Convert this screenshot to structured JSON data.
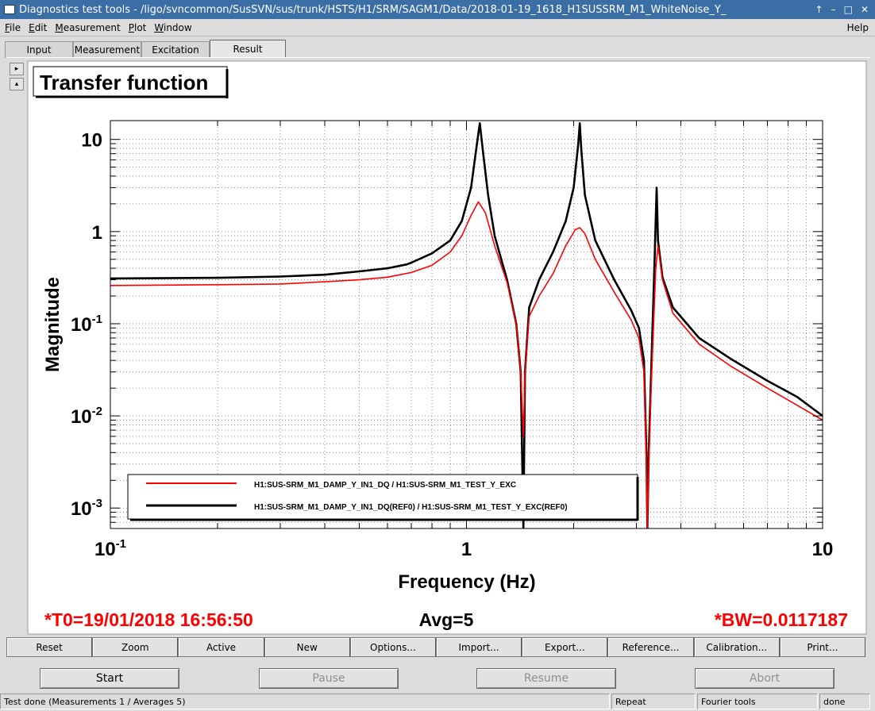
{
  "window": {
    "title": "Diagnostics test tools - /ligo/svncommon/SusSVN/sus/trunk/HSTS/H1/SRM/SAGM1/Data/2018-01-19_1618_H1SUSSRM_M1_WhiteNoise_Y_",
    "buttons": [
      "↑",
      "–",
      "□",
      "✕"
    ]
  },
  "menu": {
    "items": [
      "File",
      "Edit",
      "Measurement",
      "Plot",
      "Window"
    ],
    "help": "Help"
  },
  "tabs": [
    "Input",
    "Measurement",
    "Excitation",
    "Result"
  ],
  "side_buttons": [
    "▸",
    "▴"
  ],
  "plot": {
    "title": "Transfer function",
    "t0": "*T0=19/01/2018 16:56:50",
    "avg": "Avg=5",
    "bw": "*BW=0.0117187",
    "annotation_color": "#ff0000"
  },
  "chart_data": {
    "type": "line",
    "title": "Transfer function",
    "xlabel": "Frequency (Hz)",
    "ylabel": "Magnitude",
    "x_scale": "log",
    "y_scale": "log",
    "xlim": [
      0.1,
      10
    ],
    "ylim": [
      0.0006,
      16
    ],
    "x_ticks": [
      {
        "value": 0.1,
        "label": "10",
        "exp": "-1"
      },
      {
        "value": 1,
        "label": "1",
        "exp": ""
      },
      {
        "value": 10,
        "label": "10",
        "exp": ""
      }
    ],
    "y_ticks": [
      {
        "value": 10,
        "label": "10",
        "exp": ""
      },
      {
        "value": 1,
        "label": "1",
        "exp": ""
      },
      {
        "value": 0.1,
        "label": "10",
        "exp": "-1"
      },
      {
        "value": 0.01,
        "label": "10",
        "exp": "-2"
      },
      {
        "value": 0.001,
        "label": "10",
        "exp": "-3"
      }
    ],
    "grid": true,
    "legend_position": "bottom-left",
    "series": [
      {
        "name": "H1:SUS-SRM_M1_DAMP_Y_IN1_DQ / H1:SUS-SRM_M1_TEST_Y_EXC",
        "color": "#ff0000",
        "x": [
          0.1,
          0.2,
          0.3,
          0.4,
          0.5,
          0.6,
          0.7,
          0.8,
          0.9,
          0.97,
          1.03,
          1.08,
          1.13,
          1.2,
          1.3,
          1.38,
          1.42,
          1.445,
          1.46,
          1.5,
          1.6,
          1.75,
          1.9,
          2.02,
          2.08,
          2.15,
          2.3,
          2.6,
          2.9,
          3.05,
          3.15,
          3.2,
          3.22,
          3.25,
          3.3,
          3.4,
          3.45,
          3.55,
          3.8,
          4.5,
          5.5,
          7,
          8.5,
          10
        ],
        "y": [
          0.26,
          0.265,
          0.27,
          0.285,
          0.3,
          0.32,
          0.36,
          0.43,
          0.6,
          0.9,
          1.5,
          2.1,
          1.6,
          0.7,
          0.28,
          0.1,
          0.03,
          0.006,
          0.03,
          0.12,
          0.2,
          0.35,
          0.7,
          1.05,
          1.1,
          0.95,
          0.5,
          0.22,
          0.11,
          0.07,
          0.03,
          0.003,
          0.0006,
          0.003,
          0.02,
          0.4,
          0.7,
          0.3,
          0.13,
          0.06,
          0.035,
          0.02,
          0.013,
          0.009
        ]
      },
      {
        "name": "H1:SUS-SRM_M1_DAMP_Y_IN1_DQ(REF0) / H1:SUS-SRM_M1_TEST_Y_EXC(REF0)",
        "color": "#000000",
        "x": [
          0.1,
          0.2,
          0.3,
          0.4,
          0.5,
          0.6,
          0.68,
          0.7,
          0.8,
          0.9,
          0.97,
          1.03,
          1.07,
          1.09,
          1.11,
          1.15,
          1.2,
          1.3,
          1.38,
          1.42,
          1.445,
          1.46,
          1.5,
          1.6,
          1.75,
          1.9,
          2.0,
          2.06,
          2.08,
          2.1,
          2.15,
          2.3,
          2.6,
          2.9,
          3.05,
          3.15,
          3.2,
          3.22,
          3.25,
          3.3,
          3.38,
          3.42,
          3.45,
          3.55,
          3.8,
          4.5,
          5.5,
          7,
          8.5,
          10
        ],
        "y": [
          0.31,
          0.315,
          0.325,
          0.34,
          0.37,
          0.4,
          0.44,
          0.46,
          0.58,
          0.8,
          1.3,
          3.0,
          9.0,
          15.0,
          8.0,
          2.5,
          0.9,
          0.3,
          0.1,
          0.03,
          0.0006,
          0.03,
          0.15,
          0.3,
          0.6,
          1.3,
          3.0,
          9.0,
          15.0,
          8.0,
          2.5,
          0.8,
          0.3,
          0.14,
          0.09,
          0.04,
          0.004,
          0.0006,
          0.004,
          0.03,
          0.6,
          3.0,
          0.8,
          0.32,
          0.15,
          0.07,
          0.042,
          0.024,
          0.016,
          0.01
        ]
      }
    ]
  },
  "buttons": [
    "Reset",
    "Zoom",
    "Active",
    "New",
    "Options...",
    "Import...",
    "Export...",
    "Reference...",
    "Calibration...",
    "Print..."
  ],
  "controls": [
    "Start",
    "Pause",
    "Resume",
    "Abort"
  ],
  "status": {
    "text": "Test done (Measurements 1 / Averages 5)",
    "mode": "Repeat",
    "tool": "Fourier tools",
    "state": "done"
  }
}
